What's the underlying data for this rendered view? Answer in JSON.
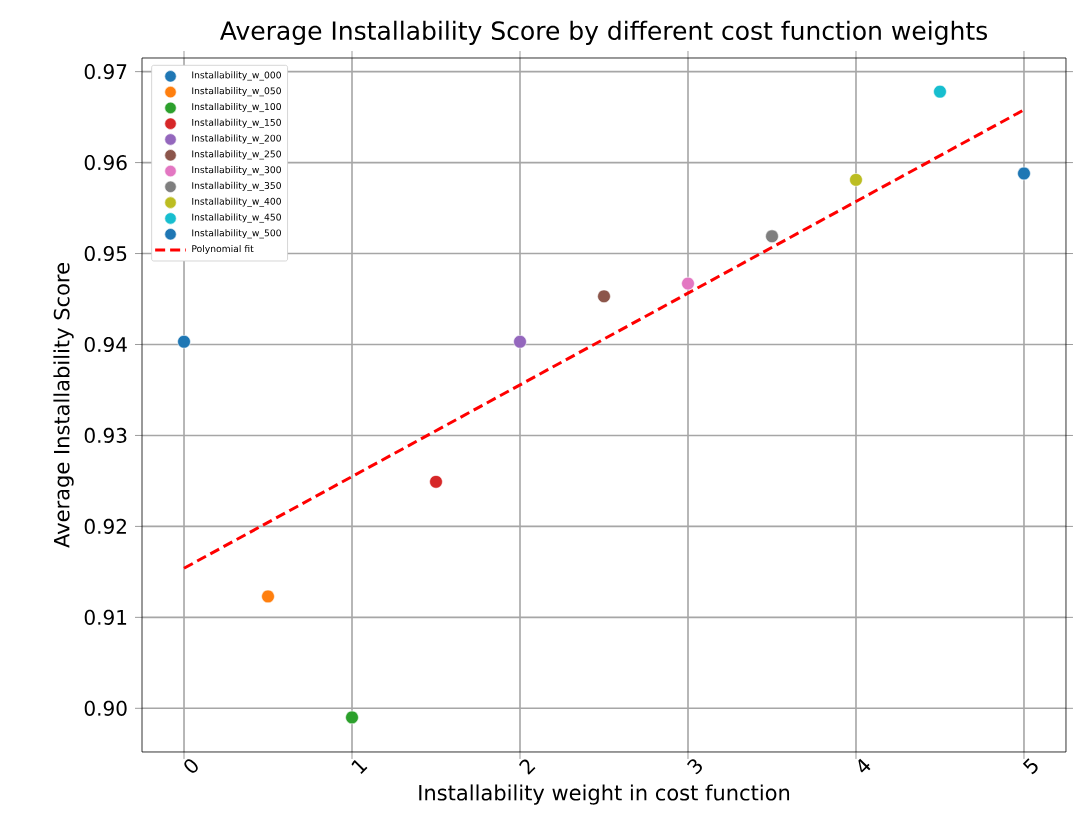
{
  "chart_data": {
    "type": "scatter",
    "title": "Average Installability Score by different cost function weights",
    "xlabel": "Installability weight in cost function",
    "ylabel": "Average Installability Score",
    "xlim": [
      -0.25,
      5.25
    ],
    "ylim": [
      0.8952,
      0.9715
    ],
    "xticks": [
      0,
      1,
      2,
      3,
      4,
      5
    ],
    "yticks": [
      {
        "value": 0.9,
        "label": "0.90"
      },
      0.91,
      0.92,
      0.93,
      0.94,
      0.95,
      0.96,
      0.97
    ],
    "grid": true,
    "legend": "top left",
    "marker": "circle",
    "series": [
      {
        "name": "Installability_w_000",
        "color": "#1f77b4",
        "x": [
          0
        ],
        "values": [
          0.9403
        ]
      },
      {
        "name": "Installability_w_050",
        "color": "#ff7f0e",
        "x": [
          0.5
        ],
        "values": [
          0.9123
        ]
      },
      {
        "name": "Installability_w_100",
        "color": "#2ca02c",
        "x": [
          1
        ],
        "values": [
          0.899
        ]
      },
      {
        "name": "Installability_w_150",
        "color": "#d62728",
        "x": [
          1.5
        ],
        "values": [
          0.9249
        ]
      },
      {
        "name": "Installability_w_200",
        "color": "#9467bd",
        "x": [
          2
        ],
        "values": [
          0.9403
        ]
      },
      {
        "name": "Installability_w_250",
        "color": "#8c564b",
        "x": [
          2.5
        ],
        "values": [
          0.9453
        ]
      },
      {
        "name": "Installability_w_300",
        "color": "#e377c2",
        "x": [
          3
        ],
        "values": [
          0.9467
        ]
      },
      {
        "name": "Installability_w_350",
        "color": "#7f7f7f",
        "x": [
          3.5
        ],
        "values": [
          0.9519
        ]
      },
      {
        "name": "Installability_w_400",
        "color": "#bcbd22",
        "x": [
          4
        ],
        "values": [
          0.9581
        ]
      },
      {
        "name": "Installability_w_450",
        "color": "#17becf",
        "x": [
          4.5
        ],
        "values": [
          0.9678
        ]
      },
      {
        "name": "Installability_w_500",
        "color": "#1f77b4",
        "x": [
          5
        ],
        "values": [
          0.9588
        ]
      },
      {
        "name": "Polynomial fit",
        "type": "line",
        "marker": "none",
        "line_style": "dashed",
        "color": "#ff0000",
        "x": [
          0,
          5
        ],
        "values": [
          0.9154,
          0.9658
        ]
      }
    ]
  }
}
